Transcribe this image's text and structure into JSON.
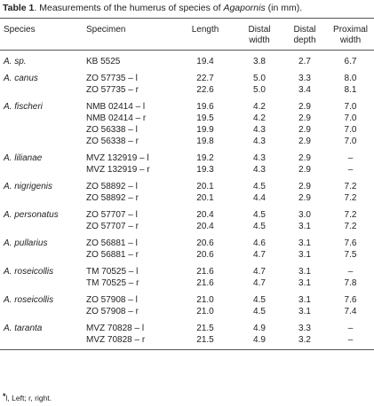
{
  "title": {
    "label": "Table 1",
    "text": ". Measurements of the humerus of species of ",
    "genus": "Agapornis",
    "tail": " (in mm)."
  },
  "table": {
    "header": [
      "Species",
      "Specimen",
      "Length",
      "Distal width",
      "Distal depth",
      "Proximal width"
    ],
    "groups": [
      {
        "species": "A. sp.",
        "rows": [
          [
            "KB 5525",
            "19.4",
            "3.8",
            "2.7",
            "6.7"
          ]
        ]
      },
      {
        "species": "A. canus",
        "rows": [
          [
            "ZO 57735 – l",
            "22.7",
            "5.0",
            "3.3",
            "8.0"
          ],
          [
            "ZO 57735 – r",
            "22.6",
            "5.0",
            "3.4",
            "8.1"
          ]
        ]
      },
      {
        "species": "A. fischeri",
        "rows": [
          [
            "NMB 02414 – l",
            "19.6",
            "4.2",
            "2.9",
            "7.0"
          ],
          [
            "NMB 02414 – r",
            "19.5",
            "4.2",
            "2.9",
            "7.0"
          ],
          [
            "ZO 56338 – l",
            "19.9",
            "4.3",
            "2.9",
            "7.0"
          ],
          [
            "ZO 56338 – r",
            "19.8",
            "4.3",
            "2.9",
            "7.0"
          ]
        ]
      },
      {
        "species": "A. lilianae",
        "rows": [
          [
            "MVZ 132919 – l",
            "19.2",
            "4.3",
            "2.9",
            "–"
          ],
          [
            "MVZ 132919 – r",
            "19.3",
            "4.3",
            "2.9",
            "–"
          ]
        ]
      },
      {
        "species": "A. nigrigenis",
        "rows": [
          [
            "ZO 58892 – l",
            "20.1",
            "4.5",
            "2.9",
            "7.2"
          ],
          [
            "ZO 58892 – r",
            "20.1",
            "4.4",
            "2.9",
            "7.2"
          ]
        ]
      },
      {
        "species": "A. personatus",
        "rows": [
          [
            "ZO 57707 – l",
            "20.4",
            "4.5",
            "3.0",
            "7.2"
          ],
          [
            "ZO 57707 – r",
            "20.4",
            "4.5",
            "3.1",
            "7.2"
          ]
        ]
      },
      {
        "species": "A. pullarius",
        "rows": [
          [
            "ZO 56881 – l",
            "20.6",
            "4.6",
            "3.1",
            "7.6"
          ],
          [
            "ZO 56881 – r",
            "20.6",
            "4.7",
            "3.1",
            "7.5"
          ]
        ]
      },
      {
        "species": "A. roseicollis",
        "rows": [
          [
            "TM 70525 – l",
            "21.6",
            "4.7",
            "3.1",
            "–"
          ],
          [
            "TM 70525 – r",
            "21.6",
            "4.7",
            "3.1",
            "7.8"
          ]
        ]
      },
      {
        "species": "A. roseicollis",
        "rows": [
          [
            "ZO 57908 – l",
            "21.0",
            "4.5",
            "3.1",
            "7.6"
          ],
          [
            "ZO 57908 – r",
            "21.0",
            "4.5",
            "3.1",
            "7.4"
          ]
        ]
      },
      {
        "species": "A. taranta",
        "rows": [
          [
            "MVZ 70828 – l",
            "21.5",
            "4.9",
            "3.3",
            "–"
          ],
          [
            "MVZ 70828 – r",
            "21.5",
            "4.9",
            "3.2",
            "–"
          ]
        ]
      }
    ]
  },
  "footnote": {
    "mark": "*",
    "text": "l, Left; r, right."
  }
}
